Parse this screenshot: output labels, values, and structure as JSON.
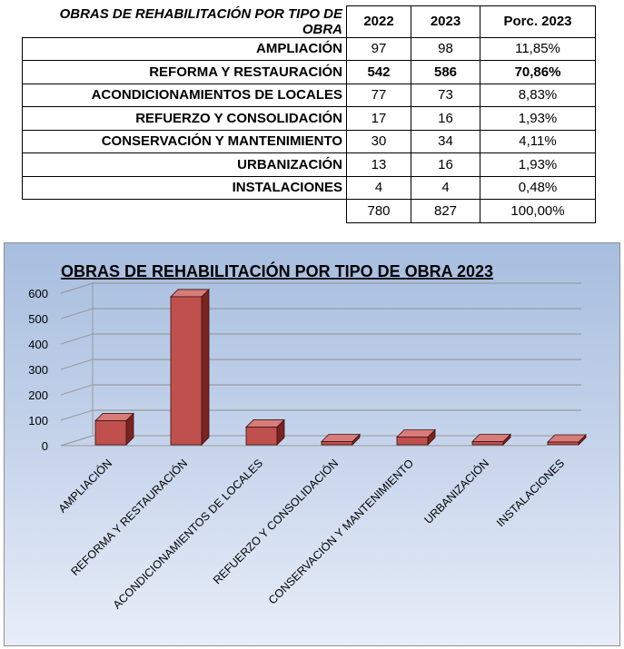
{
  "table": {
    "title": "OBRAS DE REHABILITACIÓN POR TIPO DE OBRA",
    "headers": [
      "2022",
      "2023",
      "Porc. 2023"
    ],
    "rows": [
      {
        "name": "AMPLIACIÓN",
        "y2022": "97",
        "y2023": "98",
        "pct": "11,85%"
      },
      {
        "name": "REFORMA Y RESTAURACIÓN",
        "y2022": "542",
        "y2023": "586",
        "pct": "70,86%"
      },
      {
        "name": "ACONDICIONAMIENTOS DE LOCALES",
        "y2022": "77",
        "y2023": "73",
        "pct": "8,83%"
      },
      {
        "name": "REFUERZO Y CONSOLIDACIÓN",
        "y2022": "17",
        "y2023": "16",
        "pct": "1,93%"
      },
      {
        "name": "CONSERVACIÓN Y MANTENIMIENTO",
        "y2022": "30",
        "y2023": "34",
        "pct": "4,11%"
      },
      {
        "name": "URBANIZACIÓN",
        "y2022": "13",
        "y2023": "16",
        "pct": "1,93%"
      },
      {
        "name": "INSTALACIONES",
        "y2022": "4",
        "y2023": "4",
        "pct": "0,48%"
      }
    ],
    "totals": {
      "y2022": "780",
      "y2023": "827",
      "pct": "100,00%"
    }
  },
  "chart_data": {
    "type": "bar",
    "title": "OBRAS DE REHABILITACIÓN POR TIPO DE OBRA 2023",
    "categories": [
      "AMPLIACIÓN",
      "REFORMA Y RESTAURACIÓN",
      "ACONDICIONAMIENTOS DE LOCALES",
      "REFUERZO Y CONSOLIDACIÓN",
      "CONSERVACIÓN Y MANTENIMIENTO",
      "URBANIZACIÓN",
      "INSTALACIONES"
    ],
    "values": [
      98,
      586,
      73,
      16,
      34,
      16,
      4
    ],
    "ylim": [
      0,
      600
    ],
    "yticks": [
      "0",
      "100",
      "200",
      "300",
      "400",
      "500",
      "600"
    ],
    "grid": true,
    "style": "3d",
    "bar_color": "#c0504d"
  }
}
